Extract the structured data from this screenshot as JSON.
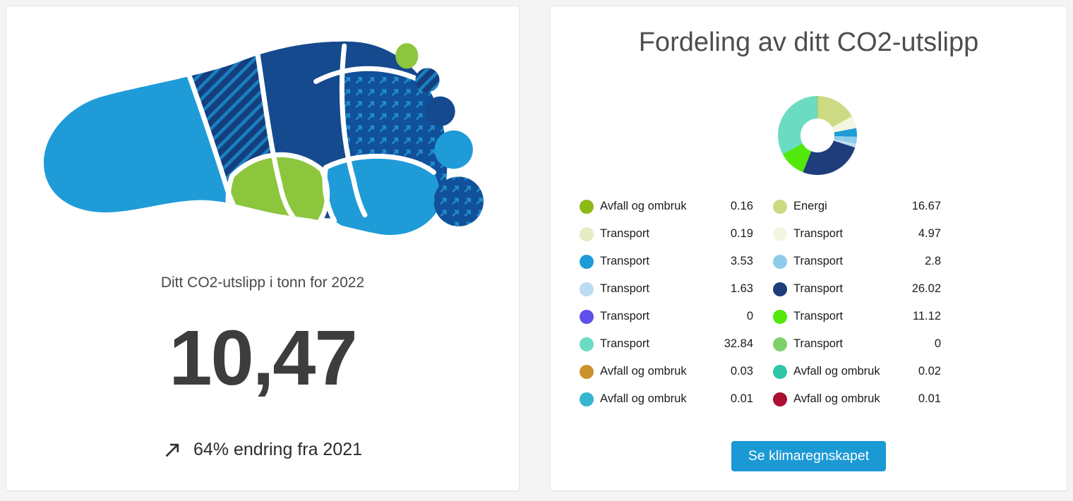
{
  "page": {
    "background": "#f4f4f5"
  },
  "summary_card": {
    "caption": "Ditt CO2-utslipp i tonn for 2022",
    "value": "10,47",
    "change_icon": "up-right-arrow",
    "change_text": "64% endring fra 2021"
  },
  "chart_data": {
    "type": "pie",
    "subtype": "donut",
    "title": "Fordeling av ditt CO2-utslipp",
    "legend_position": "below",
    "legend_columns": 2,
    "series": [
      {
        "label": "Avfall og ombruk",
        "value": 0.16,
        "display": "0.16",
        "color": "#8cba17"
      },
      {
        "label": "Energi",
        "value": 16.67,
        "display": "16.67",
        "color": "#cdda83"
      },
      {
        "label": "Transport",
        "value": 0.19,
        "display": "0.19",
        "color": "#e4edc3"
      },
      {
        "label": "Transport",
        "value": 4.97,
        "display": "4.97",
        "color": "#f3f6e0"
      },
      {
        "label": "Transport",
        "value": 3.53,
        "display": "3.53",
        "color": "#1e9cd7"
      },
      {
        "label": "Transport",
        "value": 2.8,
        "display": "2.8",
        "color": "#8fcbea"
      },
      {
        "label": "Transport",
        "value": 1.63,
        "display": "1.63",
        "color": "#bbdcf1"
      },
      {
        "label": "Transport",
        "value": 26.02,
        "display": "26.02",
        "color": "#1f3d7b"
      },
      {
        "label": "Transport",
        "value": 0,
        "display": "0",
        "color": "#5e50e8"
      },
      {
        "label": "Transport",
        "value": 11.12,
        "display": "11.12",
        "color": "#52e80c"
      },
      {
        "label": "Transport",
        "value": 32.84,
        "display": "32.84",
        "color": "#6bdcc1"
      },
      {
        "label": "Transport",
        "value": 0,
        "display": "0",
        "color": "#7ed169"
      },
      {
        "label": "Avfall og ombruk",
        "value": 0.03,
        "display": "0.03",
        "color": "#c9922d"
      },
      {
        "label": "Avfall og ombruk",
        "value": 0.02,
        "display": "0.02",
        "color": "#2ec6a6"
      },
      {
        "label": "Avfall og ombruk",
        "value": 0.01,
        "display": "0.01",
        "color": "#35b5ce"
      },
      {
        "label": "Avfall og ombruk",
        "value": 0.01,
        "display": "0.01",
        "color": "#ac0f32"
      }
    ]
  },
  "actions": {
    "view_report_label": "Se klimaregnskapet"
  },
  "colors": {
    "button": "#1b99d5",
    "title_text": "#4e4e4e",
    "value_text": "#3d3d3d"
  }
}
